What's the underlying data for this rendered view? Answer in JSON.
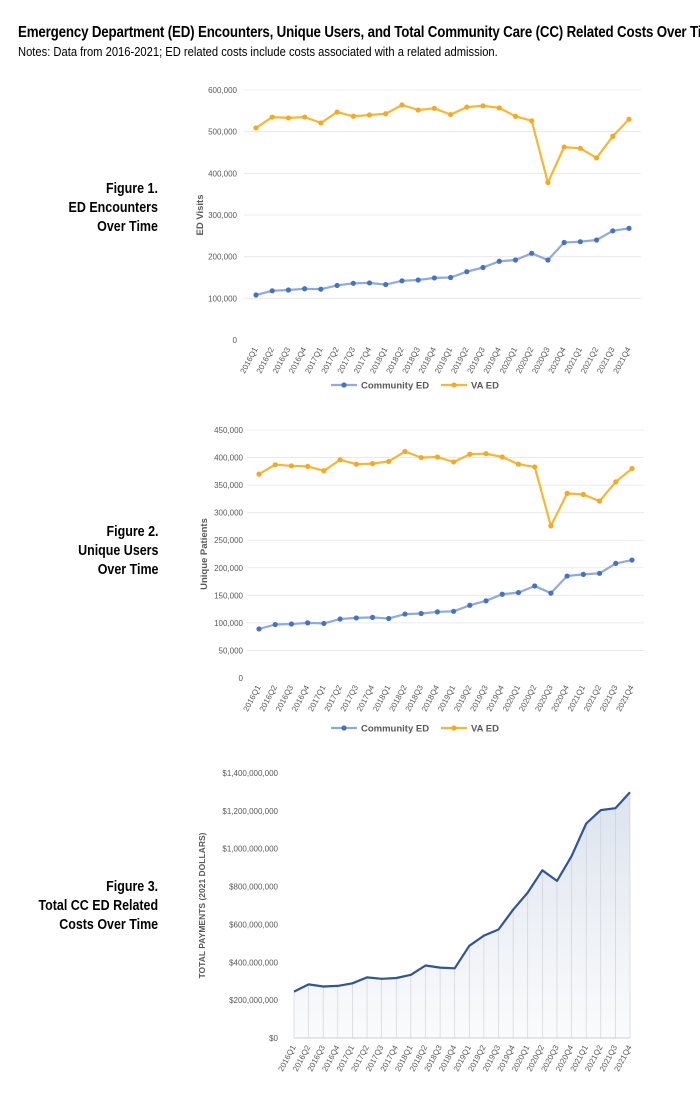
{
  "page": {
    "title": "Emergency Department (ED) Encounters, Unique Users, and Total Community Care (CC) Related Costs Over Time",
    "notes": "Notes: Data from 2016-2021; ED related costs include costs associated with a related admission."
  },
  "figures": [
    {
      "label": [
        "Figure 1.",
        "ED Encounters",
        "Over Time"
      ]
    },
    {
      "label": [
        "Figure 2.",
        "Unique Users",
        "Over Time"
      ]
    },
    {
      "label": [
        "Figure 3.",
        "Total CC ED Related",
        "Costs Over Time"
      ]
    }
  ],
  "colors": {
    "community": "#4472C4",
    "community_line": "#8FAADC",
    "va": "#F7A823",
    "va_line": "#F7B72E",
    "area_top": "#2F5597",
    "grid": "#D9D9D9",
    "text": "#595959"
  },
  "chart_data": [
    {
      "type": "line",
      "ylabel": "ED Visits",
      "ylim": [
        0,
        600000
      ],
      "ytick_labels": [
        "0",
        "100,000",
        "200,000",
        "300,000",
        "400,000",
        "500,000",
        "600,000"
      ],
      "categories": [
        "2016Q1",
        "2016Q2",
        "2016Q3",
        "2016Q4",
        "2017Q1",
        "2017Q2",
        "2017Q3",
        "2017Q4",
        "2018Q1",
        "2018Q2",
        "2018Q3",
        "2018Q4",
        "2019Q1",
        "2019Q2",
        "2019Q3",
        "2019Q4",
        "2020Q1",
        "2020Q2",
        "2020Q3",
        "2020Q4",
        "2021Q1",
        "2021Q2",
        "2021Q3",
        "2021Q4"
      ],
      "legend_position": "bottom",
      "series": [
        {
          "name": "Community ED",
          "color": "#4472C4",
          "values": [
            108000,
            118000,
            120000,
            123000,
            122000,
            131000,
            136000,
            137000,
            133000,
            142000,
            144000,
            149000,
            150000,
            164000,
            174000,
            189000,
            192000,
            208000,
            192000,
            234000,
            236000,
            240000,
            262000,
            268000
          ]
        },
        {
          "name": "VA ED",
          "color": "#F7A823",
          "values": [
            509000,
            535000,
            533000,
            535000,
            521000,
            547000,
            537000,
            540000,
            543000,
            564000,
            552000,
            556000,
            541000,
            559000,
            562000,
            557000,
            537000,
            526000,
            378000,
            463000,
            460000,
            437000,
            489000,
            530000
          ]
        }
      ]
    },
    {
      "type": "line",
      "ylabel": "Unique Patients",
      "ylim": [
        0,
        450000
      ],
      "ytick_labels": [
        "0",
        "50,000",
        "100,000",
        "150,000",
        "200,000",
        "250,000",
        "300,000",
        "350,000",
        "400,000",
        "450,000"
      ],
      "categories": [
        "2016Q1",
        "2016Q2",
        "2016Q3",
        "2016Q4",
        "2017Q1",
        "2017Q2",
        "2017Q3",
        "2017Q4",
        "2018Q1",
        "2018Q2",
        "2018Q3",
        "2018Q4",
        "2019Q1",
        "2019Q2",
        "2019Q3",
        "2019Q4",
        "2020Q1",
        "2020Q2",
        "2020Q3",
        "2020Q4",
        "2021Q1",
        "2021Q2",
        "2021Q3",
        "2021Q4"
      ],
      "legend_position": "bottom",
      "series": [
        {
          "name": "Community ED",
          "color": "#4472C4",
          "values": [
            89000,
            97000,
            98000,
            100000,
            99000,
            107000,
            109000,
            110000,
            108000,
            116000,
            117000,
            120000,
            121000,
            132000,
            140000,
            152000,
            155000,
            167000,
            154000,
            185000,
            188000,
            190000,
            208000,
            214000
          ]
        },
        {
          "name": "VA ED",
          "color": "#F7A823",
          "values": [
            370000,
            387000,
            385000,
            384000,
            376000,
            396000,
            388000,
            389000,
            393000,
            411000,
            400000,
            401000,
            392000,
            406000,
            407000,
            401000,
            388000,
            383000,
            276000,
            335000,
            333000,
            321000,
            356000,
            380000
          ]
        }
      ]
    },
    {
      "type": "area",
      "ylabel": "TOTAL PAYMENTS (2021 DOLLARS)",
      "ylim": [
        0,
        1400000000
      ],
      "ytick_labels": [
        "$0",
        "$200,000,000",
        "$400,000,000",
        "$600,000,000",
        "$800,000,000",
        "$1,000,000,000",
        "$1,200,000,000",
        "$1,400,000,000"
      ],
      "categories": [
        "2016Q1",
        "2016Q2",
        "2016Q3",
        "2016Q4",
        "2017Q1",
        "2017Q2",
        "2017Q3",
        "2017Q4",
        "2018Q1",
        "2018Q2",
        "2018Q3",
        "2018Q4",
        "2019Q1",
        "2019Q2",
        "2019Q3",
        "2019Q4",
        "2020Q1",
        "2020Q2",
        "2020Q3",
        "2020Q4",
        "2021Q1",
        "2021Q2",
        "2021Q3",
        "2021Q4"
      ],
      "series": [
        {
          "name": "",
          "values": [
            245000000,
            283000000,
            272000000,
            275000000,
            289000000,
            320000000,
            313000000,
            317000000,
            334000000,
            383000000,
            372000000,
            368000000,
            487000000,
            541000000,
            573000000,
            678000000,
            768000000,
            886000000,
            830000000,
            961000000,
            1133000000,
            1204000000,
            1214000000,
            1298000000
          ]
        }
      ]
    }
  ]
}
